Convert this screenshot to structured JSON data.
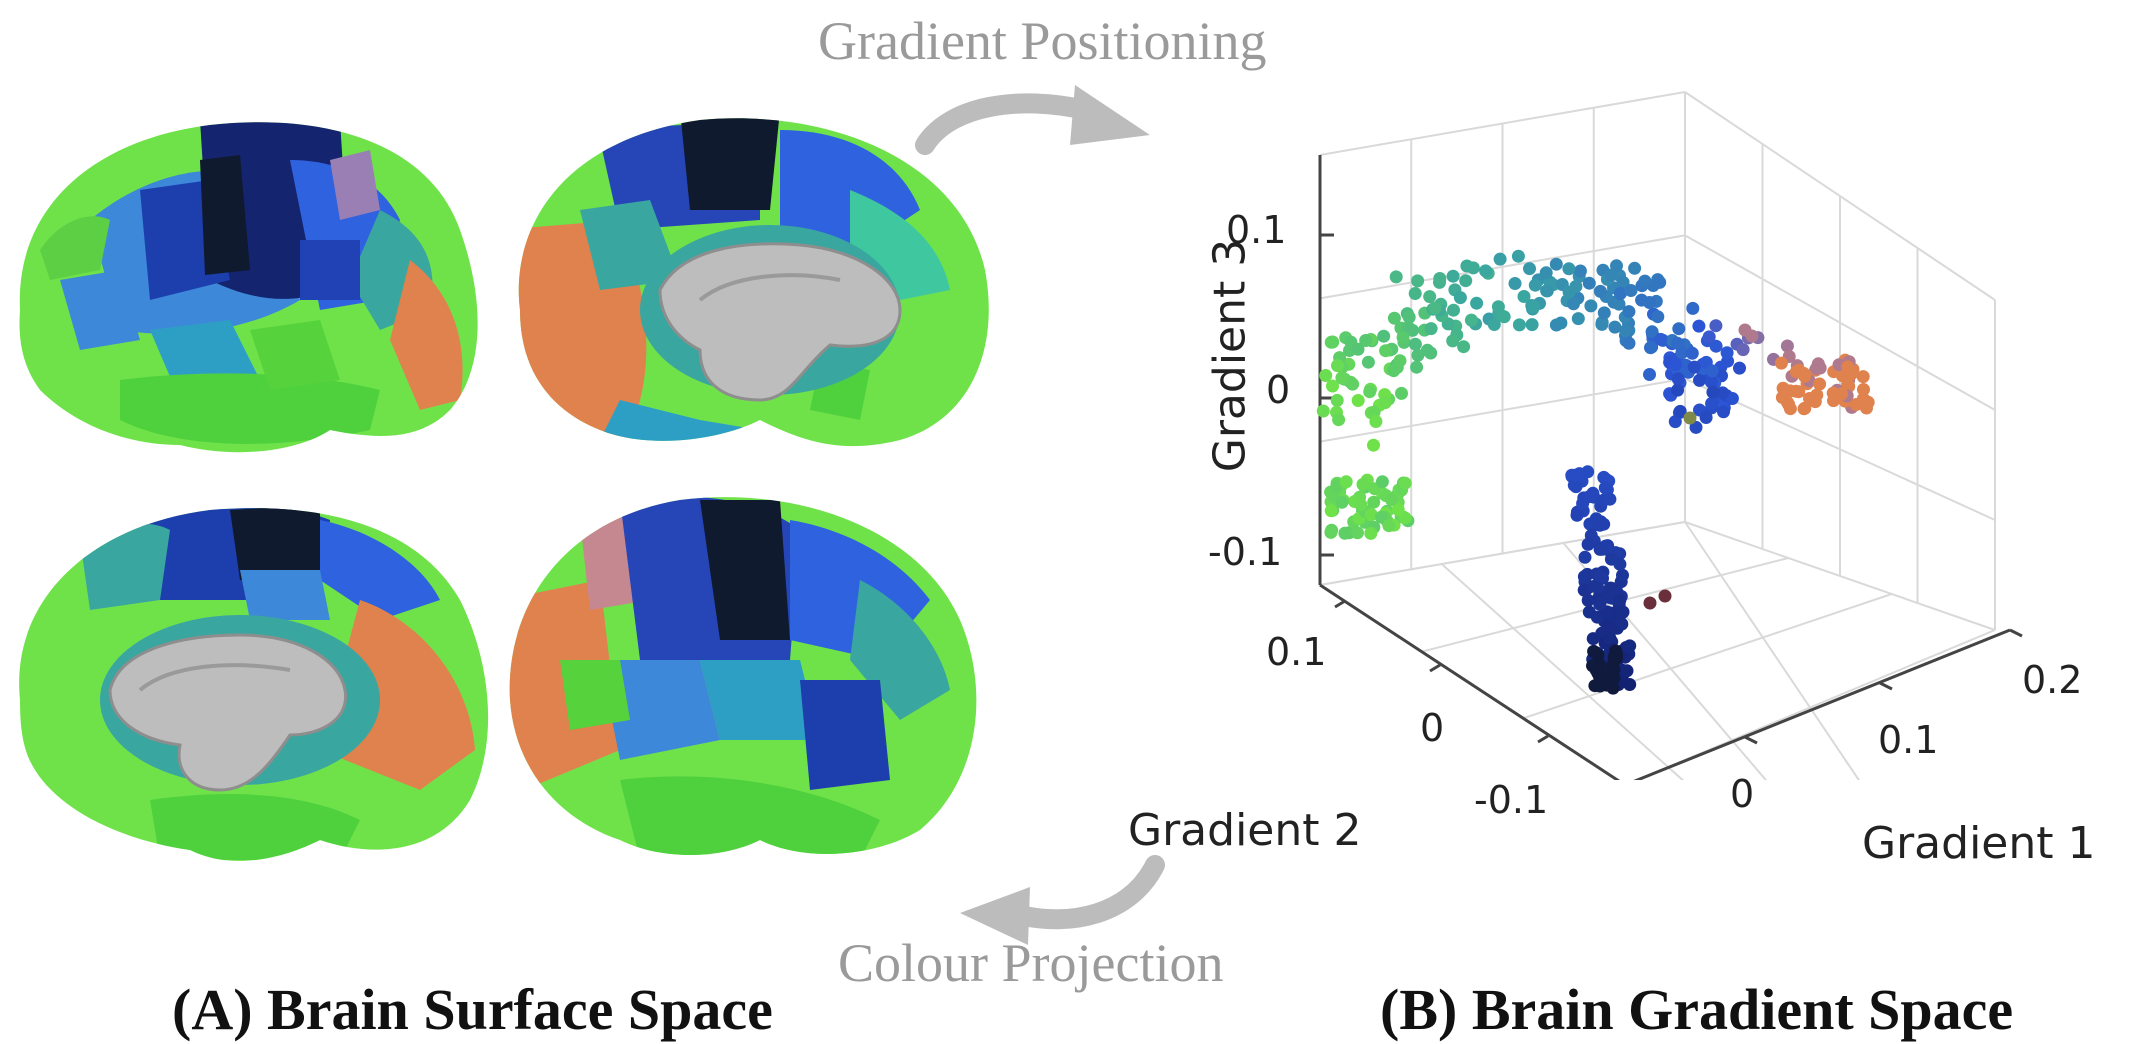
{
  "flow": {
    "top_label": "Gradient Positioning",
    "bottom_label": "Colour Projection"
  },
  "captions": {
    "left": "(A) Brain Surface Space",
    "right": "(B) Brain Gradient Space"
  },
  "plot": {
    "axes": {
      "gradient1": {
        "label": "Gradient 1",
        "ticks": [
          "0",
          "0.1",
          "0.2"
        ]
      },
      "gradient2": {
        "label": "Gradient 2",
        "ticks": [
          "-0.1",
          "0",
          "0.1"
        ]
      },
      "gradient3": {
        "label": "Gradient 3",
        "ticks": [
          "-0.1",
          "0",
          "0.1"
        ]
      }
    },
    "colors": {
      "green": "#6fe24a",
      "teal": "#3aa6a0",
      "blue": "#2c55d6",
      "navy": "#122070",
      "orange": "#e0824e",
      "mauve": "#b07a8e",
      "grid": "#d9d9d9",
      "axis": "#444444"
    }
  },
  "brain_views": [
    {
      "name": "left-lateral"
    },
    {
      "name": "left-medial"
    },
    {
      "name": "right-medial"
    },
    {
      "name": "right-lateral"
    }
  ],
  "icons": [
    "curved-arrow-right-icon",
    "curved-arrow-left-icon"
  ]
}
